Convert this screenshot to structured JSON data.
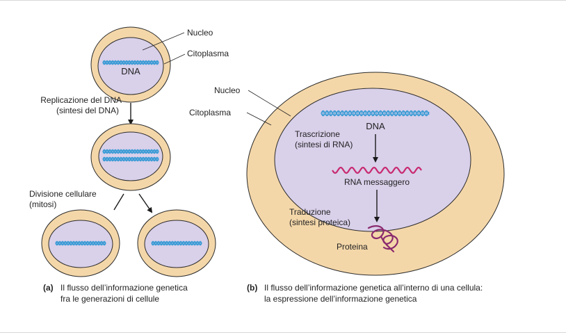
{
  "colors": {
    "cytoplasm": "#f4d7a9",
    "cytoplasm_stroke": "#2b2b2b",
    "nucleus": "#d9d0ea",
    "dna": "#3a9bd5",
    "mrna": "#c8286e",
    "protein": "#8a2a6e",
    "arrow": "#1a1a1a"
  },
  "panel_a": {
    "labels": {
      "nucleus": "Nucleo",
      "cytoplasm": "Citoplasma",
      "dna": "DNA",
      "replication_line1": "Replicazione del DNA",
      "replication_line2": "(sintesi del DNA)",
      "division_line1": "Divisione cellulare",
      "division_line2": "(mitosi)"
    },
    "caption_letter": "(a)",
    "caption_line1": "Il flusso dell’informazione genetica",
    "caption_line2": "fra le generazioni di cellule"
  },
  "panel_b": {
    "labels": {
      "nucleus": "Nucleo",
      "cytoplasm": "Citoplasma",
      "dna": "DNA",
      "transcription_line1": "Trascrizione",
      "transcription_line2": "(sintesi di RNA)",
      "mrna": "RNA messaggero",
      "translation_line1": "Traduzione",
      "translation_line2": "(sintesi proteica)",
      "protein": "Proteina"
    },
    "caption_letter": "(b)",
    "caption_line1": "Il flusso dell’informazione genetica all’interno di una cellula:",
    "caption_line2": "la espressione dell’informazione genetica"
  }
}
